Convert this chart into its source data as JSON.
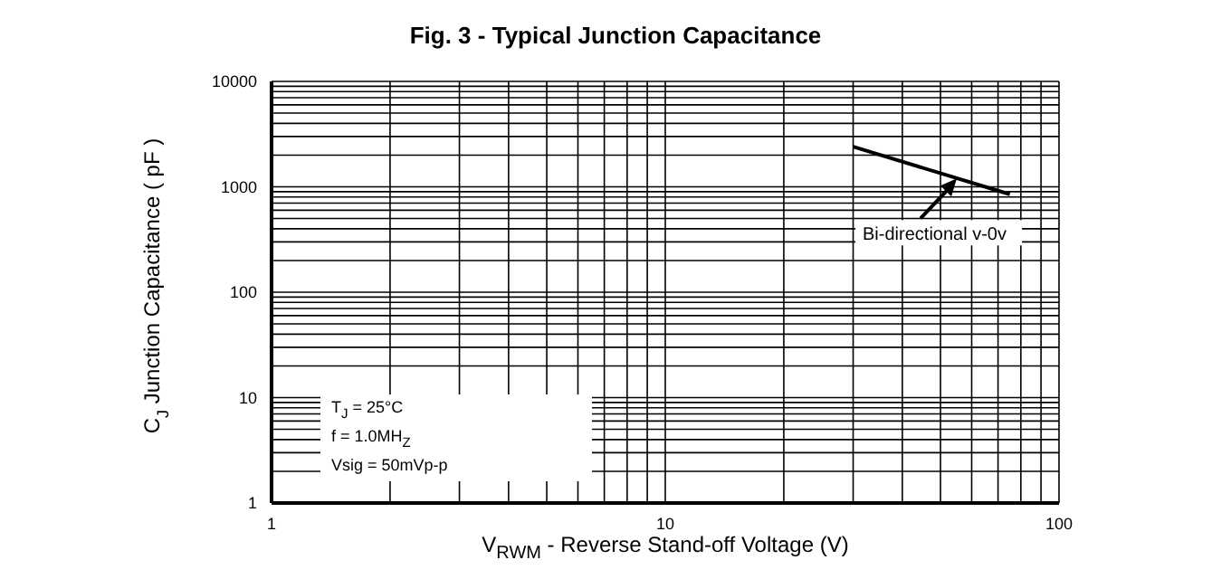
{
  "chart_data": {
    "type": "line",
    "title": "Fig. 3 - Typical Junction Capacitance",
    "xlabel": "V$_{RWM}$ - Reverse Stand-off  Voltage (V)",
    "ylabel": "C$_{J}$ Junction  Capacitance  ( pF )",
    "log": "xy",
    "grid": true,
    "legend": false,
    "marker": "none",
    "line_style": "solid",
    "xlim": [
      1,
      100
    ],
    "ylim": [
      1,
      10000
    ],
    "xticks": [
      1,
      {
        "value": 2,
        "label": null
      },
      {
        "value": 3,
        "label": null
      },
      {
        "value": 4,
        "label": null
      },
      {
        "value": 5,
        "label": null
      },
      {
        "value": 6,
        "label": null
      },
      {
        "value": 7,
        "label": null
      },
      {
        "value": 8,
        "label": null
      },
      {
        "value": 9,
        "label": null
      },
      10,
      {
        "value": 20,
        "label": null
      },
      {
        "value": 30,
        "label": null
      },
      {
        "value": 40,
        "label": null
      },
      {
        "value": 50,
        "label": null
      },
      {
        "value": 60,
        "label": null
      },
      {
        "value": 70,
        "label": null
      },
      {
        "value": 80,
        "label": null
      },
      {
        "value": 90,
        "label": null
      },
      100
    ],
    "yticks": [
      1,
      {
        "value": 2,
        "label": null
      },
      {
        "value": 3,
        "label": null
      },
      {
        "value": 4,
        "label": null
      },
      {
        "value": 5,
        "label": null
      },
      {
        "value": 6,
        "label": null
      },
      {
        "value": 7,
        "label": null
      },
      {
        "value": 8,
        "label": null
      },
      {
        "value": 9,
        "label": null
      },
      10,
      {
        "value": 20,
        "label": null
      },
      {
        "value": 30,
        "label": null
      },
      {
        "value": 40,
        "label": null
      },
      {
        "value": 50,
        "label": null
      },
      {
        "value": 60,
        "label": null
      },
      {
        "value": 70,
        "label": null
      },
      {
        "value": 80,
        "label": null
      },
      {
        "value": 90,
        "label": null
      },
      100,
      {
        "value": 200,
        "label": null
      },
      {
        "value": 300,
        "label": null
      },
      {
        "value": 400,
        "label": null
      },
      {
        "value": 500,
        "label": null
      },
      {
        "value": 600,
        "label": null
      },
      {
        "value": 700,
        "label": null
      },
      {
        "value": 800,
        "label": null
      },
      {
        "value": 900,
        "label": null
      },
      1000,
      {
        "value": 2000,
        "label": null
      },
      {
        "value": 3000,
        "label": null
      },
      {
        "value": 4000,
        "label": null
      },
      {
        "value": 5000,
        "label": null
      },
      {
        "value": 6000,
        "label": null
      },
      {
        "value": 7000,
        "label": null
      },
      {
        "value": 8000,
        "label": null
      },
      {
        "value": 9000,
        "label": null
      },
      10000
    ],
    "series": [
      {
        "color": "#000000",
        "x": [
          30,
          75
        ],
        "values": [
          2400,
          850
        ]
      }
    ],
    "annotations": [
      {
        "text": "Bi-directional v-0v",
        "x": 55,
        "y": 1200
      },
      "T$_{J}$ = 25°C",
      "f = 1.0MH$_{Z}$",
      "Vsig = 50mVp-p"
    ]
  }
}
